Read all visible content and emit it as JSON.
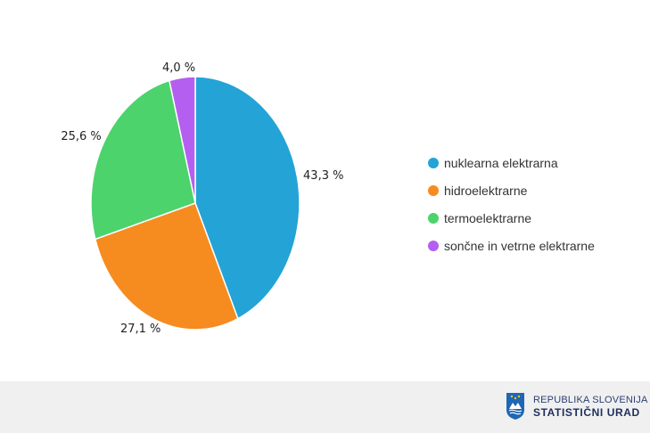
{
  "chart_data": {
    "type": "pie",
    "title": "",
    "slices": [
      {
        "label": "nuklearna elektrarna",
        "value": 43.3,
        "display": "43,3 %",
        "color": "#24a3d6"
      },
      {
        "label": "hidroelektrarne",
        "value": 27.1,
        "display": "27,1 %",
        "color": "#f68b20"
      },
      {
        "label": "termoelektrarne",
        "value": 25.6,
        "display": "25,6 %",
        "color": "#4cd36c"
      },
      {
        "label": "sončne in vetrne elektrarne",
        "value": 4.0,
        "display": "4,0 %",
        "color": "#b45ff0"
      }
    ],
    "legend_position": "right"
  },
  "footer": {
    "logo_icon": "slovenia-coat-of-arms-icon",
    "brand_line1": "REPUBLIKA SLOVENIJA",
    "brand_line2": "STATISTIČNI URAD"
  }
}
